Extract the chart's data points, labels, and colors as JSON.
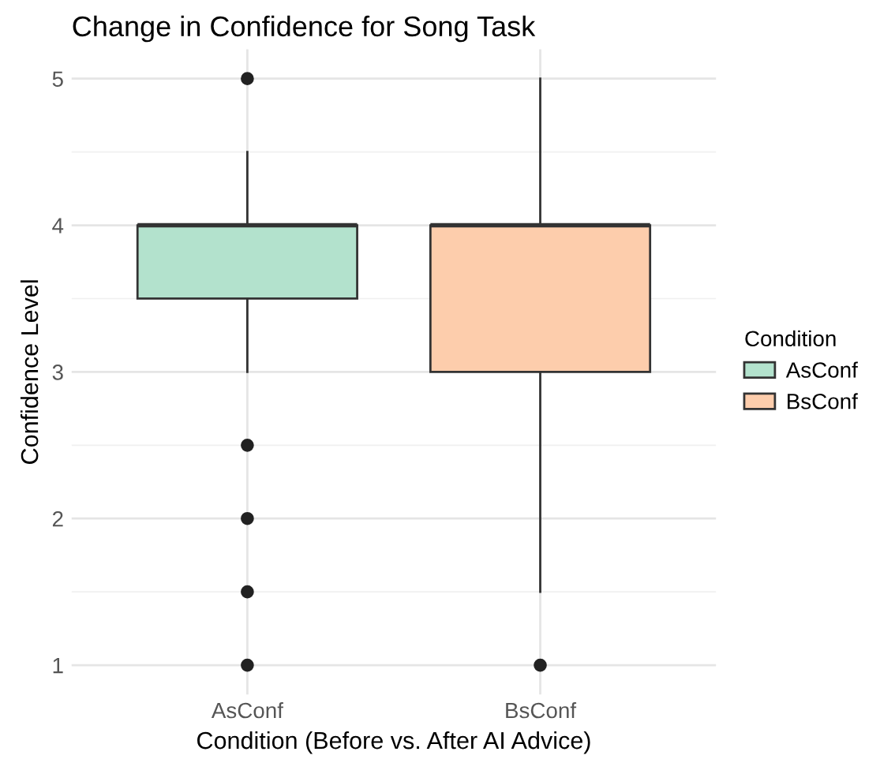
{
  "chart_data": {
    "type": "box",
    "title": "Change in Confidence for Song Task",
    "xlabel": "Condition (Before vs. After AI Advice)",
    "ylabel": "Confidence Level",
    "legend_title": "Condition",
    "categories": [
      "AsConf",
      "BsConf"
    ],
    "series": [
      {
        "name": "AsConf",
        "color": "#b3e2cd",
        "boxes": [
          {
            "low": 3,
            "q1": 3.5,
            "median": 4,
            "q3": 4,
            "high": 4.5,
            "outliers": [
              5,
              2.5,
              2,
              1.5,
              1
            ]
          },
          null
        ]
      },
      {
        "name": "BsConf",
        "color": "#fdcdac",
        "boxes": [
          null,
          {
            "low": 1.5,
            "q1": 3,
            "median": 4,
            "q3": 4,
            "high": 5,
            "outliers": [
              1
            ]
          }
        ]
      }
    ],
    "ylim": [
      0.8,
      5.2
    ],
    "yticks": [
      1,
      2,
      3,
      4,
      5
    ],
    "grid": true,
    "legend": "right"
  }
}
